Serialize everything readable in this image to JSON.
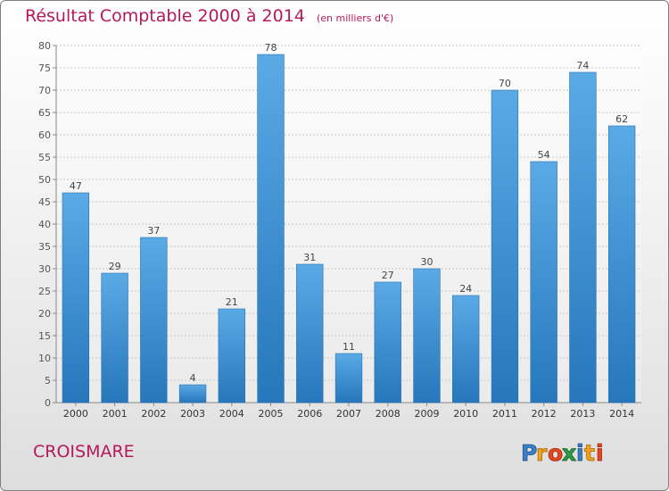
{
  "chart_data": {
    "type": "bar",
    "title": "Résultat Comptable 2000 à 2014",
    "subtitle": "(en milliers d'€)",
    "categories": [
      "2000",
      "2001",
      "2002",
      "2003",
      "2004",
      "2005",
      "2006",
      "2007",
      "2008",
      "2009",
      "2010",
      "2011",
      "2012",
      "2013",
      "2014"
    ],
    "values": [
      47,
      29,
      37,
      4,
      21,
      78,
      31,
      11,
      27,
      30,
      24,
      70,
      54,
      74,
      62
    ],
    "xlabel": "",
    "ylabel": "",
    "ylim": [
      0,
      80
    ],
    "yticks": [
      0,
      5,
      10,
      15,
      20,
      25,
      30,
      35,
      40,
      45,
      50,
      55,
      60,
      65,
      70,
      75,
      80
    ],
    "grid": true,
    "colors": {
      "bar_light": "#5aaae6",
      "bar_dark": "#2677bb",
      "title": "#b5195b"
    }
  },
  "footer": {
    "place": "CROISMARE",
    "brand": "Proxiti"
  }
}
